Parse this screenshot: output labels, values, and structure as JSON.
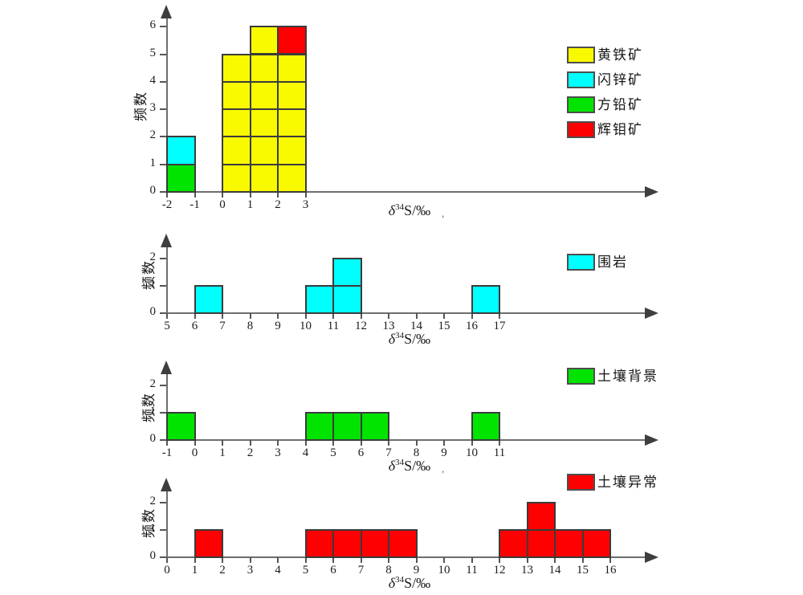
{
  "figure": {
    "background": "#FFFFFF",
    "ylabel": "频数",
    "xlabel_parts": {
      "delta": "δ",
      "superscript": "34",
      "rest": "S/‰"
    }
  },
  "style": {
    "axis_color": "#6E6E6E",
    "tick_color": "#565656",
    "arrow_color": "#3E3E3E",
    "cell_border": "#3B3B3B",
    "swatch_border": "#4E4E4E",
    "text_color": "#1C1C1C",
    "accent_yellow": "#F9F900",
    "accent_cyan": "#00FFFF",
    "accent_green": "#00E400",
    "accent_red": "#FF0000"
  },
  "chart_data": [
    {
      "type": "histogram",
      "name": "ore-minerals",
      "ylabel": "频数",
      "xlabel": "δ34S/‰",
      "xlabel_suffix": ",",
      "bin_width": 1,
      "x_ticks": [
        -2,
        -1,
        0,
        1,
        2,
        3
      ],
      "y_ticks": [
        0,
        1,
        2,
        3,
        4,
        5,
        6
      ],
      "ylim": [
        0,
        6.8
      ],
      "legend_position": "right",
      "legend": [
        {
          "series": "pyrite",
          "label": "黄铁矿",
          "color": "#F9F900"
        },
        {
          "series": "sphalerite",
          "label": "闪锌矿",
          "color": "#00FFFF"
        },
        {
          "series": "galena",
          "label": "方铅矿",
          "color": "#00E400"
        },
        {
          "series": "molybdenite",
          "label": "辉钼矿",
          "color": "#FF0000"
        }
      ],
      "columns": [
        {
          "x0": -2,
          "x1": -1,
          "stack": [
            {
              "series": "galena",
              "count": 1
            },
            {
              "series": "sphalerite",
              "count": 1
            }
          ]
        },
        {
          "x0": 0,
          "x1": 1,
          "stack": [
            {
              "series": "pyrite",
              "count": 5
            }
          ]
        },
        {
          "x0": 1,
          "x1": 2,
          "stack": [
            {
              "series": "pyrite",
              "count": 6
            }
          ]
        },
        {
          "x0": 2,
          "x1": 3,
          "stack": [
            {
              "series": "pyrite",
              "count": 5
            },
            {
              "series": "molybdenite",
              "count": 1
            }
          ]
        }
      ]
    },
    {
      "type": "histogram",
      "name": "wall-rock",
      "ylabel": "频数",
      "xlabel": "δ34S/‰",
      "xlabel_suffix": "",
      "bin_width": 1,
      "x_ticks": [
        5,
        6,
        7,
        8,
        9,
        10,
        11,
        12,
        13,
        14,
        15,
        16,
        17
      ],
      "y_ticks": [
        0,
        1,
        2
      ],
      "ylim": [
        0,
        2.9
      ],
      "legend_position": "right",
      "legend": [
        {
          "series": "wallrock",
          "label": "围岩",
          "color": "#00FFFF"
        }
      ],
      "columns": [
        {
          "x0": 6,
          "x1": 7,
          "stack": [
            {
              "series": "wallrock",
              "count": 1
            }
          ]
        },
        {
          "x0": 10,
          "x1": 11,
          "stack": [
            {
              "series": "wallrock",
              "count": 1
            }
          ]
        },
        {
          "x0": 11,
          "x1": 12,
          "stack": [
            {
              "series": "wallrock",
              "count": 2
            }
          ]
        },
        {
          "x0": 16,
          "x1": 17,
          "stack": [
            {
              "series": "wallrock",
              "count": 1
            }
          ]
        }
      ]
    },
    {
      "type": "histogram",
      "name": "soil-background",
      "ylabel": "频数",
      "xlabel": "δ34S/‰",
      "xlabel_suffix": ",",
      "bin_width": 1,
      "x_ticks": [
        -1,
        0,
        1,
        2,
        3,
        4,
        5,
        6,
        7,
        8,
        9,
        10,
        11
      ],
      "y_ticks": [
        0,
        1,
        2
      ],
      "ylim": [
        0,
        2.9
      ],
      "legend_position": "right",
      "legend": [
        {
          "series": "soil_background",
          "label": "土壤背景",
          "color": "#00E400"
        }
      ],
      "columns": [
        {
          "x0": -1,
          "x1": 0,
          "stack": [
            {
              "series": "soil_background",
              "count": 1
            }
          ]
        },
        {
          "x0": 4,
          "x1": 5,
          "stack": [
            {
              "series": "soil_background",
              "count": 1
            }
          ]
        },
        {
          "x0": 5,
          "x1": 6,
          "stack": [
            {
              "series": "soil_background",
              "count": 1
            }
          ]
        },
        {
          "x0": 6,
          "x1": 7,
          "stack": [
            {
              "series": "soil_background",
              "count": 1
            }
          ]
        },
        {
          "x0": 10,
          "x1": 11,
          "stack": [
            {
              "series": "soil_background",
              "count": 1
            }
          ]
        }
      ]
    },
    {
      "type": "histogram",
      "name": "soil-anomaly",
      "ylabel": "频数",
      "xlabel": "δ34S/‰",
      "xlabel_suffix": "",
      "bin_width": 1,
      "x_ticks": [
        0,
        1,
        2,
        3,
        4,
        5,
        6,
        7,
        8,
        9,
        10,
        11,
        12,
        13,
        14,
        15,
        16
      ],
      "y_ticks": [
        0,
        1,
        2
      ],
      "ylim": [
        0,
        2.9
      ],
      "legend_position": "top-right",
      "legend": [
        {
          "series": "soil_anomaly",
          "label": "土壤异常",
          "color": "#FF0000"
        }
      ],
      "columns": [
        {
          "x0": 1,
          "x1": 2,
          "stack": [
            {
              "series": "soil_anomaly",
              "count": 1
            }
          ]
        },
        {
          "x0": 5,
          "x1": 6,
          "stack": [
            {
              "series": "soil_anomaly",
              "count": 1
            }
          ]
        },
        {
          "x0": 6,
          "x1": 7,
          "stack": [
            {
              "series": "soil_anomaly",
              "count": 1
            }
          ]
        },
        {
          "x0": 7,
          "x1": 8,
          "stack": [
            {
              "series": "soil_anomaly",
              "count": 1
            }
          ]
        },
        {
          "x0": 8,
          "x1": 9,
          "stack": [
            {
              "series": "soil_anomaly",
              "count": 1
            }
          ]
        },
        {
          "x0": 12,
          "x1": 13,
          "stack": [
            {
              "series": "soil_anomaly",
              "count": 1
            }
          ]
        },
        {
          "x0": 13,
          "x1": 14,
          "stack": [
            {
              "series": "soil_anomaly",
              "count": 2
            }
          ]
        },
        {
          "x0": 14,
          "x1": 15,
          "stack": [
            {
              "series": "soil_anomaly",
              "count": 1
            }
          ]
        },
        {
          "x0": 15,
          "x1": 16,
          "stack": [
            {
              "series": "soil_anomaly",
              "count": 1
            }
          ]
        }
      ]
    }
  ]
}
